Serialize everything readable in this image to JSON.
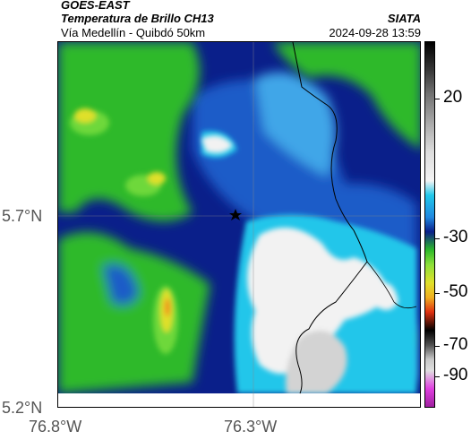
{
  "header": {
    "satellite": "GOES-EAST",
    "product": "Temperatura de Brillo CH13",
    "region": "Vía Medellín - Quibdó 50km",
    "agency": "SIATA",
    "timestamp": "2024-09-28 13:59"
  },
  "axes": {
    "y_labels": [
      "5.7°N",
      "5.2°N"
    ],
    "x_labels": [
      "76.8°W",
      "76.3°W"
    ]
  },
  "colorbar": {
    "labels": [
      "20",
      "-30",
      "-50",
      "-70",
      "-90"
    ]
  },
  "colors": {
    "deep_blue": "#0a1f8a",
    "mid_blue": "#1c5cc8",
    "light_blue": "#3fa6e8",
    "cyan": "#22c6ea",
    "white": "#f2f2f2",
    "gray": "#d3d3d3",
    "green": "#2db92a",
    "light_green": "#6ed83a",
    "yellow": "#e0e02a",
    "orange": "#f08a1a"
  }
}
